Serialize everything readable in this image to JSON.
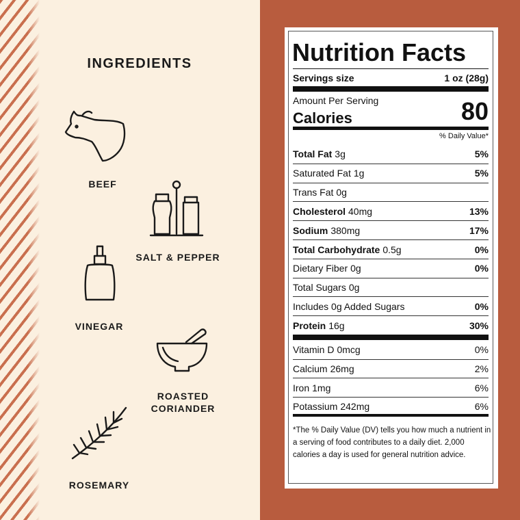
{
  "ingredients": {
    "title": "INGREDIENTS",
    "items": [
      "BEEF",
      "SALT & PEPPER",
      "VINEGAR",
      "ROASTED CORIANDER",
      "ROSEMARY"
    ]
  },
  "nutrition": {
    "title": "Nutrition Facts",
    "serving_label": "Servings size",
    "serving_value": "1 oz (28g)",
    "amount_per_serving": "Amount Per Serving",
    "calories_label": "Calories",
    "calories": 80,
    "dv_header": "% Daily Value*",
    "rows": [
      {
        "name": "Total Fat",
        "amount": "3g",
        "dv": "5%",
        "bold": true
      },
      {
        "name": "Saturated Fat",
        "amount": "1g",
        "dv": "5%",
        "bold": false
      },
      {
        "name": "Trans Fat",
        "amount": "0g",
        "bold": false
      },
      {
        "name": "Cholesterol",
        "amount": "40mg",
        "dv": "13%",
        "bold": true
      },
      {
        "name": "Sodium",
        "amount": "380mg",
        "dv": "17%",
        "bold": true
      },
      {
        "name": "Total Carbohydrate",
        "amount": "0.5g",
        "dv": "0%",
        "bold": true
      },
      {
        "name": "Dietary Fiber",
        "amount": "0g",
        "dv": "0%",
        "bold": false
      },
      {
        "name": "Total Sugars",
        "amount": "0g",
        "bold": false
      },
      {
        "name": "Includes 0g Added Sugars",
        "dv": "0%",
        "bold": false
      },
      {
        "name": "Protein",
        "amount": "16g",
        "dv": "30%",
        "bold": true
      }
    ],
    "vitamins": [
      {
        "name": "Vitamin D",
        "amount": "0mcg",
        "dv": "0%"
      },
      {
        "name": "Calcium",
        "amount": "26mg",
        "dv": "2%"
      },
      {
        "name": "Iron",
        "amount": "1mg",
        "dv": "6%"
      },
      {
        "name": "Potassium",
        "amount": "242mg",
        "dv": "6%"
      }
    ],
    "footnote": "*The % Daily Value (DV) tells you how much a nutrient in a serving of food contributes to a daily diet. 2,000 calories a day is used for general nutrition advice."
  }
}
